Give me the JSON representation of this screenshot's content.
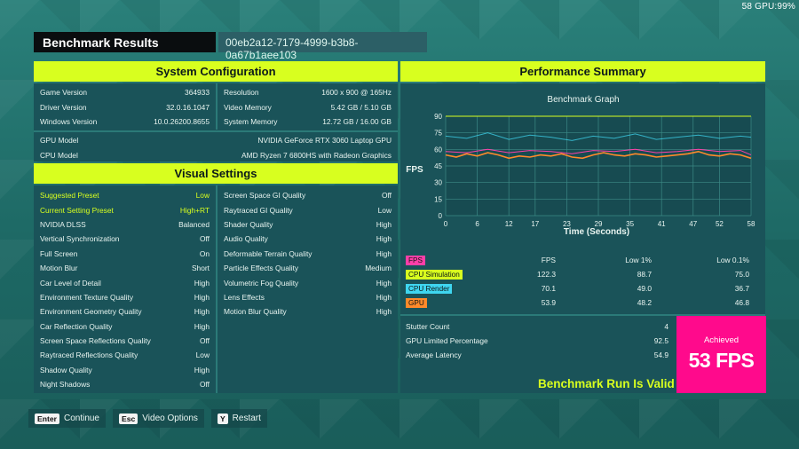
{
  "overlay": {
    "gpu": "58 GPU:99%"
  },
  "header": {
    "title": "Benchmark Results",
    "run_id": "00eb2a12-7179-4999-b3b8-0a67b1aee103"
  },
  "system": {
    "heading": "System Configuration",
    "left": [
      {
        "k": "Game Version",
        "v": "364933"
      },
      {
        "k": "Driver Version",
        "v": "32.0.16.1047"
      },
      {
        "k": "Windows Version",
        "v": "10.0.26200.8655"
      }
    ],
    "right": [
      {
        "k": "Resolution",
        "v": "1600 x 900 @ 165Hz"
      },
      {
        "k": "Video Memory",
        "v": "5.42 GB / 5.10 GB"
      },
      {
        "k": "System Memory",
        "v": "12.72 GB / 16.00 GB"
      }
    ],
    "full": [
      {
        "k": "GPU Model",
        "v": "NVIDIA GeForce RTX 3060 Laptop GPU"
      },
      {
        "k": "CPU Model",
        "v": "AMD Ryzen 7 6800HS with Radeon Graphics"
      }
    ]
  },
  "visual": {
    "heading": "Visual Settings",
    "left": [
      {
        "k": "Suggested Preset",
        "v": "Low",
        "hl": true
      },
      {
        "k": "Current Setting Preset",
        "v": "High+RT",
        "hl": true
      },
      {
        "k": "NVIDIA DLSS",
        "v": "Balanced"
      },
      {
        "k": "Vertical Synchronization",
        "v": "Off"
      },
      {
        "k": "Full Screen",
        "v": "On"
      },
      {
        "k": "Motion Blur",
        "v": "Short"
      },
      {
        "k": "Car Level of Detail",
        "v": "High"
      },
      {
        "k": "Environment Texture Quality",
        "v": "High"
      },
      {
        "k": "Environment Geometry Quality",
        "v": "High"
      },
      {
        "k": "Car Reflection Quality",
        "v": "High"
      },
      {
        "k": "Screen Space Reflections Quality",
        "v": "Off"
      },
      {
        "k": "Raytraced Reflections Quality",
        "v": "Low"
      },
      {
        "k": "Shadow Quality",
        "v": "High"
      },
      {
        "k": "Night Shadows",
        "v": "Off"
      }
    ],
    "right": [
      {
        "k": "Screen Space GI Quality",
        "v": "Off"
      },
      {
        "k": "Raytraced GI Quality",
        "v": "Low"
      },
      {
        "k": "Shader Quality",
        "v": "High"
      },
      {
        "k": "Audio Quality",
        "v": "High"
      },
      {
        "k": "Deformable Terrain Quality",
        "v": "High"
      },
      {
        "k": "Particle Effects Quality",
        "v": "Medium"
      },
      {
        "k": "Volumetric Fog Quality",
        "v": "High"
      },
      {
        "k": "Lens Effects",
        "v": "High"
      },
      {
        "k": "Motion Blur Quality",
        "v": "High"
      }
    ]
  },
  "performance": {
    "heading": "Performance Summary",
    "table": {
      "headers": [
        "FPS",
        "Low 1%",
        "Low 0.1%"
      ],
      "rows": [
        {
          "label": "CPU Simulation",
          "color": "#d8ff1f",
          "values": [
            "122.3",
            "88.7",
            "75.0"
          ]
        },
        {
          "label": "CPU Render",
          "color": "#3fd6f0",
          "values": [
            "70.1",
            "49.0",
            "36.7"
          ]
        },
        {
          "label": "GPU",
          "color": "#ff8a2a",
          "values": [
            "53.9",
            "48.2",
            "46.8"
          ]
        }
      ],
      "fps_tag_color": "#ff3fa8"
    },
    "stats": [
      {
        "k": "Stutter Count",
        "v": "4"
      },
      {
        "k": "GPU Limited Percentage",
        "v": "92.5"
      },
      {
        "k": "Average Latency",
        "v": "54.9"
      }
    ],
    "achieved_label": "Achieved",
    "achieved_value": "53 FPS",
    "valid_text": "Benchmark Run Is Valid"
  },
  "chart_data": {
    "type": "line",
    "title": "Benchmark Graph",
    "xlabel": "Time (Seconds)",
    "ylabel": "FPS",
    "xlim": [
      0,
      58
    ],
    "ylim": [
      0,
      90
    ],
    "x_ticks": [
      0,
      6,
      12,
      17,
      23,
      29,
      35,
      41,
      47,
      52,
      58
    ],
    "y_ticks": [
      0,
      15,
      30,
      45,
      60,
      75,
      90
    ],
    "grid": true,
    "series": [
      {
        "name": "CPU Simulation",
        "color": "#d8ff1f",
        "x": [
          0,
          58
        ],
        "y": [
          90,
          90
        ]
      },
      {
        "name": "CPU Render",
        "color": "#3fd6f0",
        "x": [
          0,
          4,
          8,
          12,
          16,
          20,
          24,
          28,
          32,
          36,
          40,
          44,
          48,
          52,
          56,
          58
        ],
        "y": [
          72,
          70,
          75,
          69,
          73,
          71,
          68,
          72,
          70,
          74,
          69,
          71,
          73,
          70,
          72,
          71
        ]
      },
      {
        "name": "FPS",
        "color": "#ff3fa8",
        "x": [
          0,
          4,
          8,
          12,
          16,
          20,
          24,
          28,
          32,
          36,
          40,
          44,
          48,
          52,
          56,
          58
        ],
        "y": [
          58,
          57,
          60,
          57,
          59,
          58,
          56,
          59,
          58,
          60,
          57,
          58,
          60,
          58,
          59,
          55
        ]
      },
      {
        "name": "GPU",
        "color": "#ff8a2a",
        "x": [
          0,
          2,
          4,
          6,
          8,
          10,
          12,
          14,
          16,
          18,
          20,
          22,
          24,
          26,
          28,
          30,
          32,
          34,
          36,
          38,
          40,
          42,
          44,
          46,
          48,
          50,
          52,
          54,
          56,
          58
        ],
        "y": [
          55,
          53,
          56,
          54,
          57,
          55,
          52,
          54,
          53,
          55,
          54,
          56,
          53,
          52,
          55,
          57,
          55,
          54,
          56,
          55,
          53,
          54,
          55,
          56,
          58,
          55,
          54,
          56,
          55,
          52
        ]
      }
    ]
  },
  "footer": [
    {
      "key": "Enter",
      "label": "Continue"
    },
    {
      "key": "Esc",
      "label": "Video Options"
    },
    {
      "key": "Y",
      "label": "Restart"
    }
  ]
}
